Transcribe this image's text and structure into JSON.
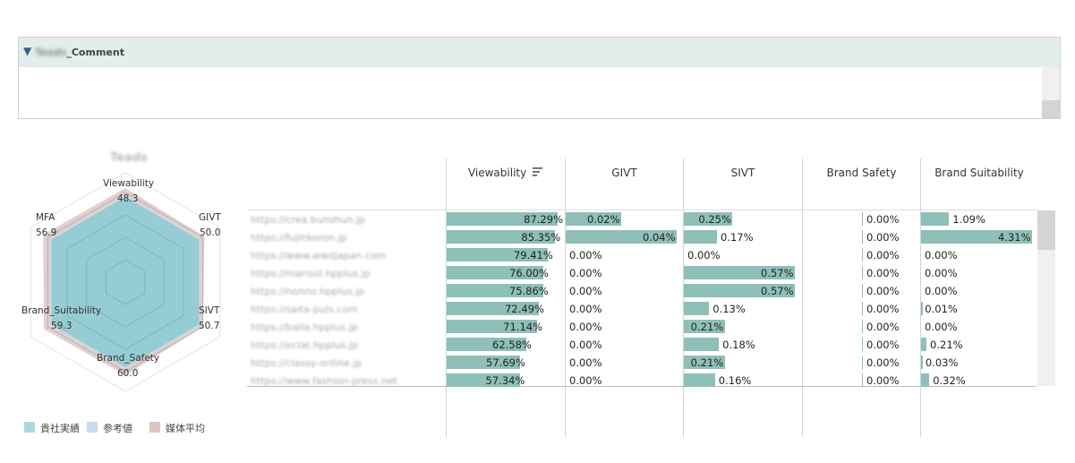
{
  "comment": {
    "title_prefix": "Teads",
    "title_suffix": "_Comment",
    "toggle_icon": "triangle-down-icon"
  },
  "radar": {
    "title": "Teads",
    "axes": [
      {
        "name": "Viewability",
        "value": "48.3"
      },
      {
        "name": "GIVT",
        "value": "50.0"
      },
      {
        "name": "SIVT",
        "value": "50.7"
      },
      {
        "name": "Brand_Safety",
        "value": "60.0"
      },
      {
        "name": "Brand_Suitability",
        "value": "59.3"
      },
      {
        "name": "MFA",
        "value": "56.9"
      }
    ],
    "series_colors": {
      "company": "#8dc9cf",
      "reference": "#c4dcf1",
      "media_avg": "#d9bfbd"
    }
  },
  "legend": [
    {
      "label": "貴社実績",
      "color": "#a9d9dd"
    },
    {
      "label": "参考値",
      "color": "#c4dcf1"
    },
    {
      "label": "媒体平均",
      "color": "#dcc5c2"
    }
  ],
  "table": {
    "columns": [
      "Viewability",
      "GIVT",
      "SIVT",
      "Brand Safety",
      "Brand Suitability"
    ],
    "sort_icon": "sort-icon",
    "rows": [
      {
        "url": "https://crea.bunshun.jp",
        "viewability": "87.29%",
        "givt": "0.02%",
        "sivt": "0.25%",
        "brand_safety": "0.00%",
        "brand_suitability": "1.09%"
      },
      {
        "url": "https://fujinkoron.jp",
        "viewability": "85.35%",
        "givt": "0.04%",
        "sivt": "0.17%",
        "brand_safety": "0.00%",
        "brand_suitability": "4.31%"
      },
      {
        "url": "https://www.wwdjapan.com",
        "viewability": "79.41%",
        "givt": "0.00%",
        "sivt": "0.00%",
        "brand_safety": "0.00%",
        "brand_suitability": "0.00%"
      },
      {
        "url": "https://marisol.hpplus.jp",
        "viewability": "76.00%",
        "givt": "0.00%",
        "sivt": "0.57%",
        "brand_safety": "0.00%",
        "brand_suitability": "0.00%"
      },
      {
        "url": "https://nonno.hpplus.jp",
        "viewability": "75.86%",
        "givt": "0.00%",
        "sivt": "0.57%",
        "brand_safety": "0.00%",
        "brand_suitability": "0.00%"
      },
      {
        "url": "https://saita-puls.com",
        "viewability": "72.49%",
        "givt": "0.00%",
        "sivt": "0.13%",
        "brand_safety": "0.00%",
        "brand_suitability": "0.01%"
      },
      {
        "url": "https://baila.hpplus.jp",
        "viewability": "71.14%",
        "givt": "0.00%",
        "sivt": "0.21%",
        "brand_safety": "0.00%",
        "brand_suitability": "0.00%"
      },
      {
        "url": "https://eclat.hpplus.jp",
        "viewability": "62.58%",
        "givt": "0.00%",
        "sivt": "0.18%",
        "brand_safety": "0.00%",
        "brand_suitability": "0.21%"
      },
      {
        "url": "https://classy-online.jp",
        "viewability": "57.69%",
        "givt": "0.00%",
        "sivt": "0.21%",
        "brand_safety": "0.00%",
        "brand_suitability": "0.03%"
      },
      {
        "url": "https://www.fashion-press.net",
        "viewability": "57.34%",
        "givt": "0.00%",
        "sivt": "0.16%",
        "brand_safety": "0.00%",
        "brand_suitability": "0.32%"
      }
    ]
  }
}
